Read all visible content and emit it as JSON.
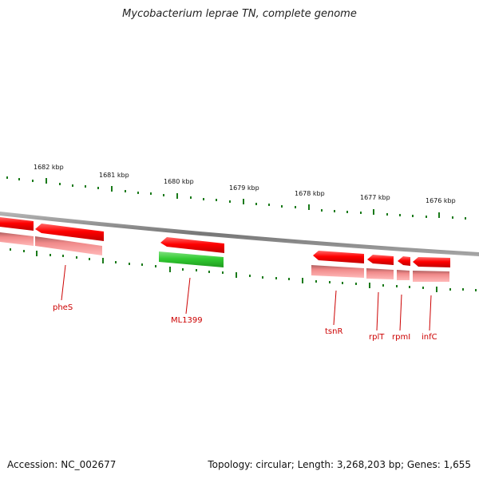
{
  "title": "Mycobacterium leprae TN, complete genome",
  "footer": {
    "accession": "Accession: NC_002677",
    "summary": "Topology: circular; Length: 3,268,203 bp; Genes: 1,655"
  },
  "ruler": {
    "labels": [
      "1682 kbp",
      "1681 kbp",
      "1680 kbp",
      "1679 kbp",
      "1678 kbp",
      "1677 kbp",
      "1676 kbp"
    ]
  },
  "genes": [
    {
      "name": "",
      "strand": "reverse",
      "type": "CDS"
    },
    {
      "name": "pheS",
      "strand": "reverse",
      "type": "CDS"
    },
    {
      "name": "ML1399",
      "strand": "reverse",
      "type": "pseudogene"
    },
    {
      "name": "tsnR",
      "strand": "reverse",
      "type": "CDS"
    },
    {
      "name": "rplT",
      "strand": "reverse",
      "type": "CDS"
    },
    {
      "name": "rpmI",
      "strand": "reverse",
      "type": "CDS"
    },
    {
      "name": "infC",
      "strand": "reverse",
      "type": "CDS"
    }
  ],
  "colors": {
    "cds": "#ff0000",
    "cds_light": "#f08080",
    "pseudogene": "#33cc33",
    "backbone": "#888888",
    "tick": "#1a7a1a",
    "gene_label": "#cc0000"
  }
}
